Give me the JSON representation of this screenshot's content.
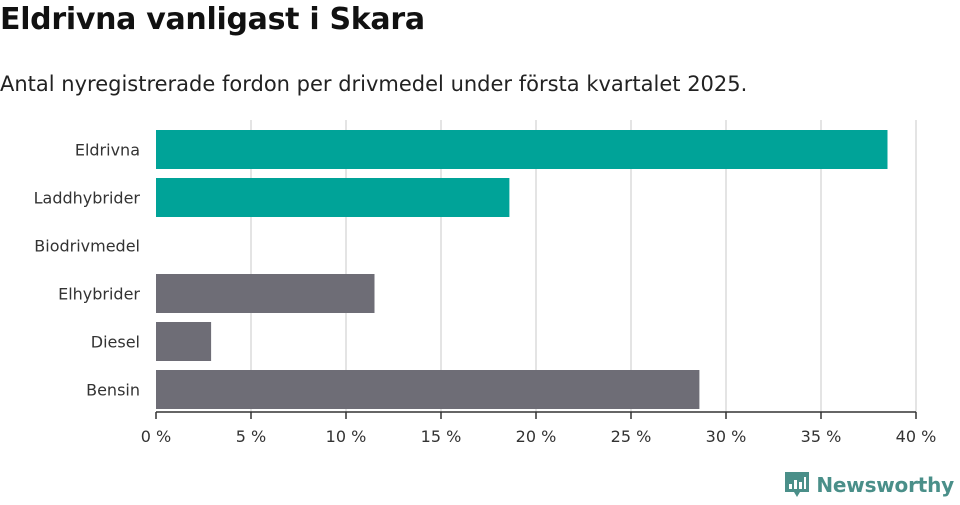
{
  "title": "Eldrivna vanligast i Skara",
  "subtitle": "Antal nyregistrerade fordon per drivmedel under första kvartalet 2025.",
  "brand": {
    "name": "Newsworthy",
    "icon": "newsworthy-logo-icon"
  },
  "colors": {
    "highlight": "#00a398",
    "default": "#6e6d76",
    "grid": "#dcdcdc",
    "axis": "#333333",
    "brand": "#4a8f89"
  },
  "chart_data": {
    "type": "bar",
    "orientation": "horizontal",
    "categories": [
      "Eldrivna",
      "Laddhybrider",
      "Biodrivmedel",
      "Elhybrider",
      "Diesel",
      "Bensin"
    ],
    "values": [
      38.5,
      18.6,
      0,
      11.5,
      2.9,
      28.6
    ],
    "highlighted": [
      true,
      true,
      false,
      false,
      false,
      false
    ],
    "xlim": [
      0,
      40
    ],
    "xticks": [
      0,
      5,
      10,
      15,
      20,
      25,
      30,
      35,
      40
    ],
    "xtick_labels": [
      "0 %",
      "5 %",
      "10 %",
      "15 %",
      "20 %",
      "25 %",
      "30 %",
      "35 %",
      "40 %"
    ],
    "grid": "vertical",
    "legend": "none"
  }
}
